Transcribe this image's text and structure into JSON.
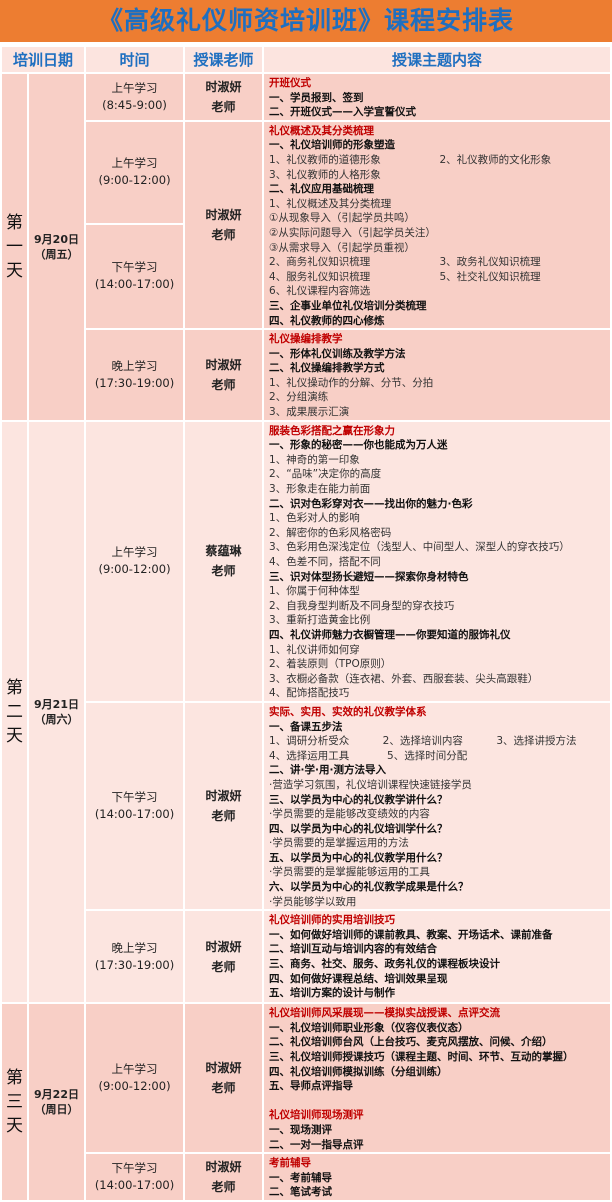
{
  "title": "《高级礼仪师资培训班》课程安排表",
  "colors": {
    "title_bg": "#ED7D31",
    "title_text": "#1F6FC0",
    "heading_red": "#C00000",
    "day_dark_bg": "#F8CFC6",
    "day_light_bg": "#FCE5E0"
  },
  "headers": [
    "培训日期",
    "时间",
    "授课老师",
    "授课主题内容"
  ],
  "days": [
    {
      "day": "第一天",
      "date": "9月20日",
      "weekday": "（周五）",
      "sessions": [
        {
          "time": "上午学习",
          "hours": "(8:45-9:00)",
          "teacher": "时淑妍",
          "teacher_title": "老师",
          "lines": [
            {
              "s": "h",
              "t": [
                "开班仪式"
              ]
            },
            {
              "s": "b",
              "t": [
                "一、学员报到、签到"
              ]
            },
            {
              "s": "b",
              "t": [
                "二、开班仪式——入学宣誓仪式"
              ]
            }
          ]
        },
        {
          "time": "上午学习",
          "hours": "(9:00-12:00)",
          "time2": "下午学习",
          "hours2": "(14:00-17:00)",
          "teacher": "时淑妍",
          "teacher_title": "老师",
          "lines": [
            {
              "s": "h",
              "t": [
                "礼仪概述及其分类梳理"
              ]
            },
            {
              "s": "b",
              "t": [
                "一、礼仪培训师的形象塑造"
              ]
            },
            {
              "s": "n",
              "t": [
                "1、礼仪教师的道德形象",
                "2、礼仪教师的文化形象"
              ]
            },
            {
              "s": "n",
              "t": [
                "3、礼仪教师的人格形象"
              ]
            },
            {
              "s": "b",
              "t": [
                "二、礼仪应用基础梳理"
              ]
            },
            {
              "s": "n",
              "t": [
                "1、礼仪概述及其分类梳理"
              ]
            },
            {
              "s": "n",
              "t": [
                "①从现象导入（引起学员共鸣）"
              ]
            },
            {
              "s": "n",
              "t": [
                "②从实际问题导入（引起学员关注）"
              ]
            },
            {
              "s": "n",
              "t": [
                "③从需求导入（引起学员重视）"
              ]
            },
            {
              "s": "n",
              "t": [
                "2、商务礼仪知识梳理",
                "3、政务礼仪知识梳理"
              ]
            },
            {
              "s": "n",
              "t": [
                "4、服务礼仪知识梳理",
                "5、社交礼仪知识梳理"
              ]
            },
            {
              "s": "n",
              "t": [
                "6、礼仪课程内容筛选"
              ]
            },
            {
              "s": "b",
              "t": [
                "三、企事业单位礼仪培训分类梳理"
              ]
            },
            {
              "s": "b",
              "t": [
                "四、礼仪教师的四心修炼"
              ]
            }
          ]
        },
        {
          "time": "晚上学习",
          "hours": "(17:30-19:00)",
          "teacher": "时淑妍",
          "teacher_title": "老师",
          "lines": [
            {
              "s": "h",
              "t": [
                "礼仪操编排教学"
              ]
            },
            {
              "s": "b",
              "t": [
                "一、形体礼仪训练及教学方法"
              ]
            },
            {
              "s": "b",
              "t": [
                "二、礼仪操编排教学方式"
              ]
            },
            {
              "s": "n",
              "t": [
                "1、礼仪操动作的分解、分节、分拍"
              ]
            },
            {
              "s": "n",
              "t": [
                "2、分组演练"
              ]
            },
            {
              "s": "n",
              "t": [
                "3、成果展示汇演"
              ]
            }
          ]
        }
      ]
    },
    {
      "day": "第二天",
      "date": "9月21日",
      "weekday": "（周六）",
      "sessions": [
        {
          "time": "上午学习",
          "hours": "(9:00-12:00)",
          "teacher": "蔡蕴琳",
          "teacher_title": "老师",
          "lines": [
            {
              "s": "h",
              "t": [
                "服装色彩搭配之赢在形象力"
              ]
            },
            {
              "s": "b",
              "t": [
                "一、形象的秘密——你也能成为万人迷"
              ]
            },
            {
              "s": "n",
              "t": [
                "1、神奇的第一印象"
              ]
            },
            {
              "s": "n",
              "t": [
                "2、“品味”决定你的高度"
              ]
            },
            {
              "s": "n",
              "t": [
                "3、形象走在能力前面"
              ]
            },
            {
              "s": "b",
              "t": [
                "二、识对色彩穿对衣——找出你的魅力·色彩"
              ]
            },
            {
              "s": "n",
              "t": [
                "1、色彩对人的影响"
              ]
            },
            {
              "s": "n",
              "t": [
                "2、解密你的色彩风格密码"
              ]
            },
            {
              "s": "n",
              "t": [
                "3、色彩用色深浅定位（浅型人、中间型人、深型人的穿衣技巧）"
              ]
            },
            {
              "s": "n",
              "t": [
                "4、色差不同，搭配不同"
              ]
            },
            {
              "s": "b",
              "t": [
                "三、识对体型扬长避短——探索你身材特色"
              ]
            },
            {
              "s": "n",
              "t": [
                "1、你属于何种体型"
              ]
            },
            {
              "s": "n",
              "t": [
                "2、自我身型判断及不同身型的穿衣技巧"
              ]
            },
            {
              "s": "n",
              "t": [
                "3、重新打造黄金比例"
              ]
            },
            {
              "s": "b",
              "t": [
                "四、礼仪讲师魅力衣橱管理——你要知道的服饰礼仪"
              ]
            },
            {
              "s": "n",
              "t": [
                "1、礼仪讲师如何穿"
              ]
            },
            {
              "s": "n",
              "t": [
                "2、着装原则（TPO原则）"
              ]
            },
            {
              "s": "n",
              "t": [
                "3、衣橱必备款（连衣裙、外套、西服套装、尖头高跟鞋）"
              ]
            },
            {
              "s": "n",
              "t": [
                "4、配饰搭配技巧"
              ]
            }
          ]
        },
        {
          "time": "下午学习",
          "hours": "(14:00-17:00)",
          "teacher": "时淑妍",
          "teacher_title": "老师",
          "lines": [
            {
              "s": "h",
              "t": [
                "实际、实用、实效的礼仪教学体系"
              ]
            },
            {
              "s": "b",
              "t": [
                "一、备课五步法"
              ]
            },
            {
              "s": "n",
              "c": 3,
              "t": [
                "1、调研分析受众",
                "2、选择培训内容",
                "3、选择讲授方法"
              ]
            },
            {
              "s": "n",
              "c": 3,
              "t": [
                "4、选择运用工具",
                "5、选择时间分配"
              ]
            },
            {
              "s": "b",
              "t": [
                "二、讲·学·用·测方法导入"
              ]
            },
            {
              "s": "n",
              "t": [
                "·营造学习氛围，礼仪培训课程快速链接学员"
              ]
            },
            {
              "s": "b",
              "t": [
                "三、以学员为中心的礼仪教学讲什么？"
              ]
            },
            {
              "s": "n",
              "t": [
                "·学员需要的是能够改变绩效的内容"
              ]
            },
            {
              "s": "b",
              "t": [
                "四、以学员为中心的礼仪培训学什么？"
              ]
            },
            {
              "s": "n",
              "t": [
                "·学员需要的是掌握运用的方法"
              ]
            },
            {
              "s": "b",
              "t": [
                "五、以学员为中心的礼仪教学用什么？"
              ]
            },
            {
              "s": "n",
              "t": [
                "·学员需要的是掌握能够运用的工具"
              ]
            },
            {
              "s": "b",
              "t": [
                "六、以学员为中心的礼仪教学成果是什么？"
              ]
            },
            {
              "s": "n",
              "t": [
                "·学员能够学以致用"
              ]
            }
          ]
        },
        {
          "time": "晚上学习",
          "hours": "(17:30-19:00)",
          "teacher": "时淑妍",
          "teacher_title": "老师",
          "lines": [
            {
              "s": "h",
              "t": [
                "礼仪培训师的实用培训技巧"
              ]
            },
            {
              "s": "b",
              "t": [
                "一、如何做好培训师的课前教具、教案、开场话术、课前准备"
              ]
            },
            {
              "s": "b",
              "t": [
                "二、培训互动与培训内容的有效结合"
              ]
            },
            {
              "s": "b",
              "t": [
                "三、商务、社交、服务、政务礼仪的课程板块设计"
              ]
            },
            {
              "s": "b",
              "t": [
                "四、如何做好课程总结、培训效果呈现"
              ]
            },
            {
              "s": "b",
              "t": [
                "五、培训方案的设计与制作"
              ]
            }
          ]
        }
      ]
    },
    {
      "day": "第三天",
      "date": "9月22日",
      "weekday": "（周日）",
      "sessions": [
        {
          "time": "上午学习",
          "hours": "(9:00-12:00)",
          "teacher": "时淑妍",
          "teacher_title": "老师",
          "lines": [
            {
              "s": "h",
              "t": [
                "礼仪培训师风采展现——模拟实战授课、点评交流"
              ]
            },
            {
              "s": "b",
              "t": [
                "一、礼仪培训师职业形象（仪容仪表仪态）"
              ]
            },
            {
              "s": "b",
              "t": [
                "二、礼仪培训师台风（上台技巧、麦克风摆放、问候、介绍）"
              ]
            },
            {
              "s": "b",
              "t": [
                "三、礼仪培训师授课技巧（课程主题、时间、环节、互动的掌握）"
              ]
            },
            {
              "s": "b",
              "t": [
                "四、礼仪培训师模拟训练（分组训练）"
              ]
            },
            {
              "s": "b",
              "t": [
                "五、导师点评指导"
              ]
            },
            {
              "s": "n",
              "t": [
                ""
              ]
            },
            {
              "s": "h",
              "t": [
                "礼仪培训师现场测评"
              ]
            },
            {
              "s": "b",
              "t": [
                "一、现场测评"
              ]
            },
            {
              "s": "b",
              "t": [
                "二、一对一指导点评"
              ]
            }
          ]
        },
        {
          "time": "下午学习",
          "hours": "(14:00-17:00)",
          "teacher": "时淑妍",
          "teacher_title": "老师",
          "lines": [
            {
              "s": "h",
              "t": [
                "考前辅导"
              ]
            },
            {
              "s": "b",
              "t": [
                "一、考前辅导"
              ]
            },
            {
              "s": "b",
              "t": [
                "二、笔试考试"
              ]
            }
          ]
        }
      ]
    }
  ]
}
